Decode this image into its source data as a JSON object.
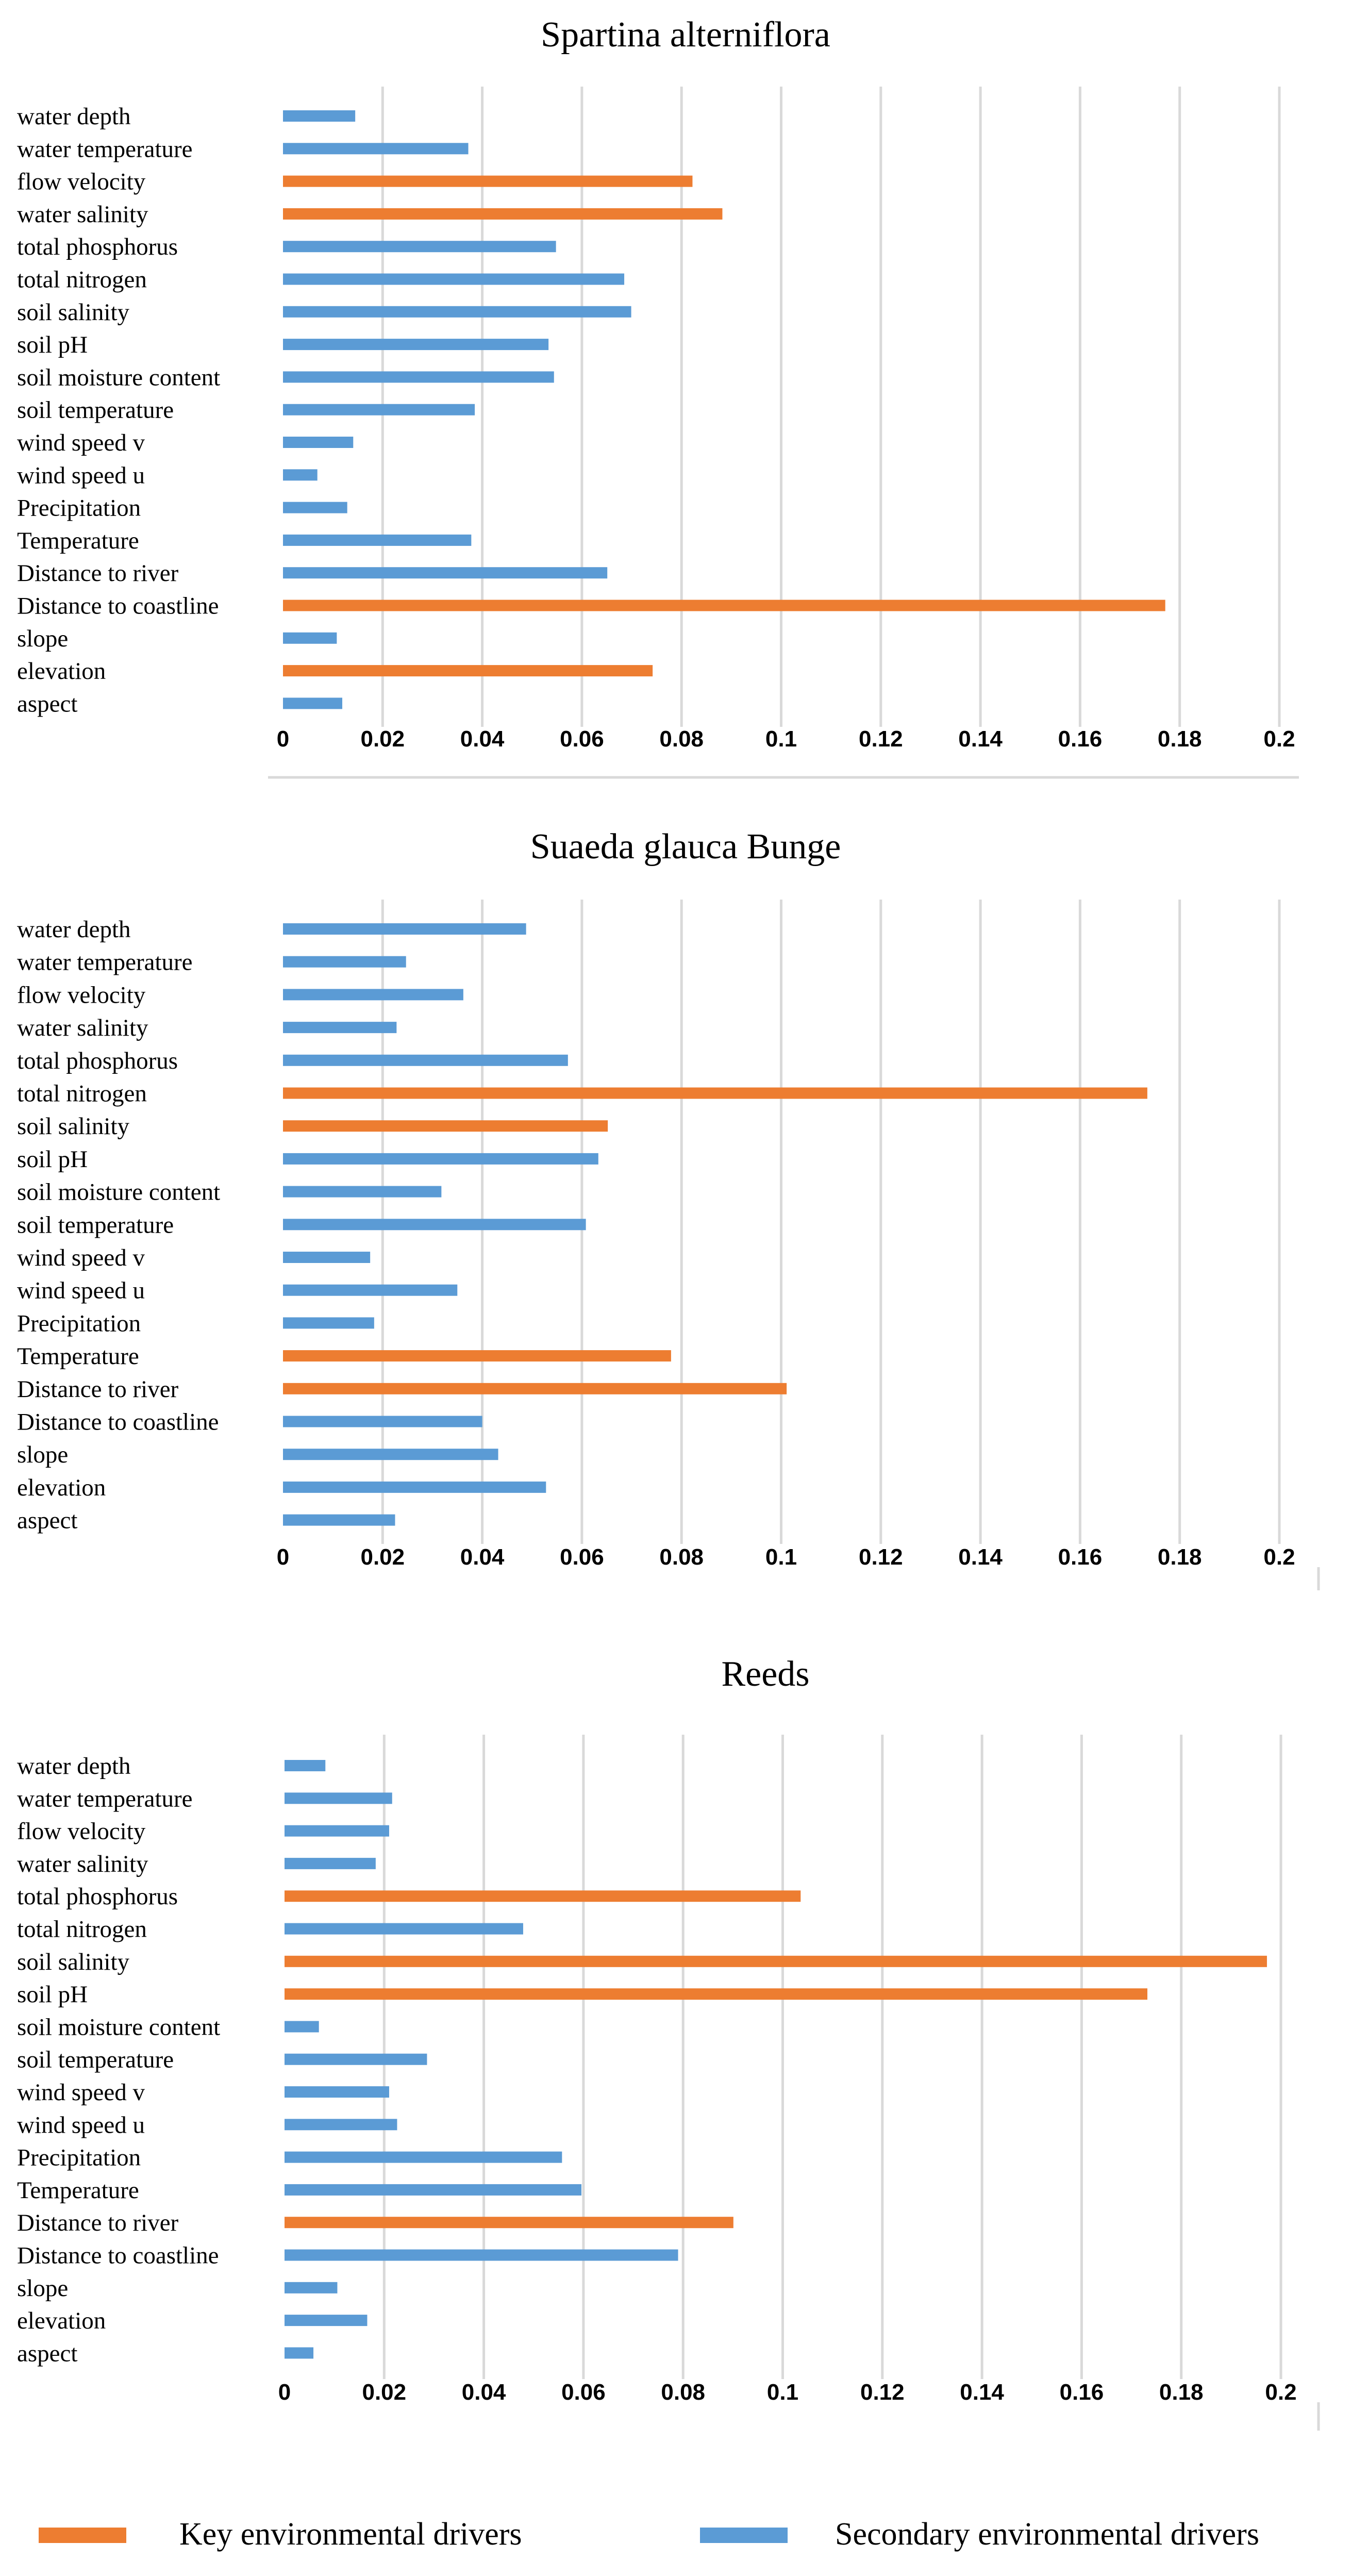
{
  "colors": {
    "key": "#ED7D31",
    "secondary": "#5B9BD5",
    "grid": "#D9D9D9"
  },
  "legend": [
    {
      "label": "Key environmental drivers",
      "color": "#ED7D31",
      "kind": "key"
    },
    {
      "label": "Secondary environmental drivers",
      "color": "#5B9BD5",
      "kind": "secondary"
    }
  ],
  "chart_data": [
    {
      "type": "bar",
      "orientation": "horizontal",
      "title": "Spartina alterniflora",
      "xlim": [
        0,
        0.2
      ],
      "xticks": [
        "0",
        "0.02",
        "0.04",
        "0.06",
        "0.08",
        "0.1",
        "0.12",
        "0.14",
        "0.16",
        "0.18",
        "0.2"
      ],
      "grid": true,
      "categories": [
        "water depth",
        "water temperature",
        "flow velocity",
        "water salinity",
        "total phosphorus",
        "total nitrogen",
        "soil salinity",
        "soil pH",
        "soil moisture content",
        "soil temperature",
        "wind speed v",
        "wind speed u",
        "Precipitation",
        "Temperature",
        "Distance to river",
        "Distance to coastline",
        "slope",
        "elevation",
        "aspect"
      ],
      "values": [
        0.0145,
        0.0372,
        0.0822,
        0.0882,
        0.0548,
        0.0685,
        0.0699,
        0.0533,
        0.0544,
        0.0385,
        0.0141,
        0.0069,
        0.0129,
        0.0378,
        0.0651,
        0.1771,
        0.0108,
        0.0742,
        0.0119
      ],
      "driver": [
        "secondary",
        "secondary",
        "key",
        "key",
        "secondary",
        "secondary",
        "secondary",
        "secondary",
        "secondary",
        "secondary",
        "secondary",
        "secondary",
        "secondary",
        "secondary",
        "secondary",
        "key",
        "secondary",
        "key",
        "secondary"
      ]
    },
    {
      "type": "bar",
      "orientation": "horizontal",
      "title": "Suaeda glauca Bunge",
      "xlim": [
        0,
        0.2
      ],
      "xticks": [
        "0",
        "0.02",
        "0.04",
        "0.06",
        "0.08",
        "0.1",
        "0.12",
        "0.14",
        "0.16",
        "0.18",
        "0.2"
      ],
      "grid": true,
      "categories": [
        "water depth",
        "water temperature",
        "flow velocity",
        "water salinity",
        "total phosphorus",
        "total nitrogen",
        "soil salinity",
        "soil pH",
        "soil moisture content",
        "soil temperature",
        "wind speed v",
        "wind speed u",
        "Precipitation",
        "Temperature",
        "Distance to river",
        "Distance to coastline",
        "slope",
        "elevation",
        "aspect"
      ],
      "values": [
        0.0488,
        0.0247,
        0.0362,
        0.0228,
        0.0572,
        0.1735,
        0.0652,
        0.0633,
        0.0318,
        0.0608,
        0.0175,
        0.035,
        0.0183,
        0.0779,
        0.1011,
        0.04,
        0.0432,
        0.0528,
        0.0225
      ],
      "driver": [
        "secondary",
        "secondary",
        "secondary",
        "secondary",
        "secondary",
        "key",
        "key",
        "secondary",
        "secondary",
        "secondary",
        "secondary",
        "secondary",
        "secondary",
        "key",
        "key",
        "secondary",
        "secondary",
        "secondary",
        "secondary"
      ]
    },
    {
      "type": "bar",
      "orientation": "horizontal",
      "title": "Reeds",
      "xlim": [
        0,
        0.2
      ],
      "xticks": [
        "0",
        "0.02",
        "0.04",
        "0.06",
        "0.08",
        "0.1",
        "0.12",
        "0.14",
        "0.16",
        "0.18",
        "0.2"
      ],
      "grid": true,
      "categories": [
        "water depth",
        "water temperature",
        "flow velocity",
        "water salinity",
        "total phosphorus",
        "total nitrogen",
        "soil salinity",
        "soil pH",
        "soil moisture content",
        "soil temperature",
        "wind speed v",
        "wind speed u",
        "Precipitation",
        "Temperature",
        "Distance to river",
        "Distance to coastline",
        "slope",
        "elevation",
        "aspect"
      ],
      "values": [
        0.0082,
        0.0216,
        0.021,
        0.0183,
        0.1036,
        0.0479,
        0.1972,
        0.1732,
        0.0069,
        0.0286,
        0.021,
        0.0226,
        0.0557,
        0.0596,
        0.0901,
        0.079,
        0.0106,
        0.0166,
        0.0058
      ],
      "driver": [
        "secondary",
        "secondary",
        "secondary",
        "secondary",
        "key",
        "secondary",
        "key",
        "key",
        "secondary",
        "secondary",
        "secondary",
        "secondary",
        "secondary",
        "secondary",
        "key",
        "secondary",
        "secondary",
        "secondary",
        "secondary"
      ]
    }
  ]
}
